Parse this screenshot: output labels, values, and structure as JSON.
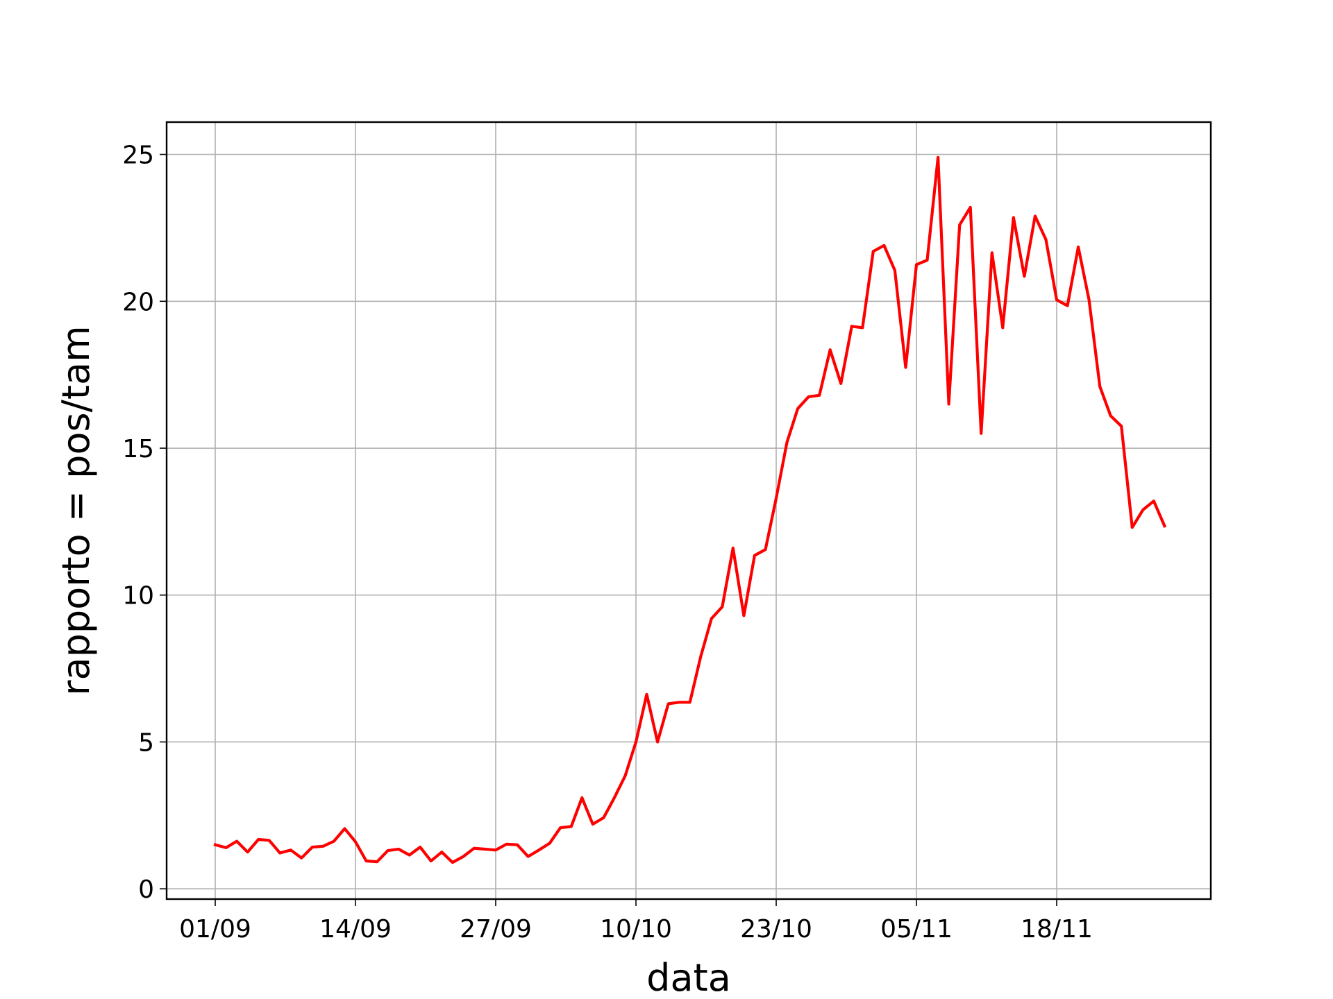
{
  "chart_data": {
    "type": "line",
    "xlabel": "data",
    "ylabel": "rapporto = pos/tam",
    "x_ticks": [
      "01/09",
      "14/09",
      "27/09",
      "10/10",
      "23/10",
      "05/11",
      "18/11"
    ],
    "y_ticks": [
      "0",
      "5",
      "10",
      "15",
      "20",
      "25"
    ],
    "ylim": [
      -0.35,
      26.1
    ],
    "grid": true,
    "series_color": "#ff0000",
    "series": [
      {
        "x": [
          "01/09",
          "02/09",
          "03/09",
          "04/09",
          "05/09",
          "06/09",
          "07/09",
          "08/09",
          "09/09",
          "10/09",
          "11/09",
          "12/09",
          "13/09",
          "14/09",
          "15/09",
          "16/09",
          "17/09",
          "18/09",
          "19/09",
          "20/09",
          "21/09",
          "22/09",
          "23/09",
          "24/09",
          "25/09",
          "26/09",
          "27/09",
          "28/09",
          "29/09",
          "30/09",
          "01/10",
          "02/10",
          "03/10",
          "04/10",
          "05/10",
          "06/10",
          "07/10",
          "08/10",
          "09/10",
          "10/10",
          "11/10",
          "12/10",
          "13/10",
          "14/10",
          "15/10",
          "16/10",
          "17/10",
          "18/10",
          "19/10",
          "20/10",
          "21/10",
          "22/10",
          "23/10",
          "24/10",
          "25/10",
          "26/10",
          "27/10",
          "28/10",
          "29/10",
          "30/10",
          "31/10",
          "01/11",
          "02/11",
          "03/11",
          "04/11",
          "05/11",
          "06/11",
          "07/11",
          "08/11",
          "09/11",
          "10/11",
          "11/11",
          "12/11",
          "13/11",
          "14/11",
          "15/11",
          "16/11",
          "17/11",
          "18/11",
          "19/11",
          "20/11",
          "21/11",
          "22/11",
          "23/11",
          "24/11",
          "25/11",
          "26/11",
          "27/11",
          "28/11"
        ],
        "values": [
          1.5,
          1.4,
          1.62,
          1.25,
          1.68,
          1.65,
          1.22,
          1.32,
          1.05,
          1.42,
          1.45,
          1.62,
          2.05,
          1.6,
          0.95,
          0.92,
          1.3,
          1.35,
          1.15,
          1.42,
          0.95,
          1.25,
          0.9,
          1.1,
          1.38,
          1.35,
          1.32,
          1.52,
          1.5,
          1.1,
          1.32,
          1.55,
          2.08,
          2.12,
          3.1,
          2.2,
          2.42,
          3.1,
          3.85,
          5.0,
          6.62,
          5.0,
          6.3,
          6.35,
          6.35,
          7.9,
          9.2,
          9.6,
          11.6,
          9.3,
          11.35,
          11.55,
          13.3,
          15.2,
          16.35,
          16.75,
          16.8,
          18.35,
          17.2,
          19.15,
          19.1,
          21.7,
          21.9,
          21.05,
          17.75,
          21.25,
          21.4,
          24.9,
          16.5,
          22.6,
          23.2,
          15.5,
          21.65,
          19.1,
          22.85,
          20.85,
          22.9,
          22.1,
          20.05,
          19.85,
          21.85,
          20.05,
          17.1,
          16.1,
          15.75,
          12.3,
          12.9,
          13.2,
          12.35
        ]
      }
    ]
  }
}
